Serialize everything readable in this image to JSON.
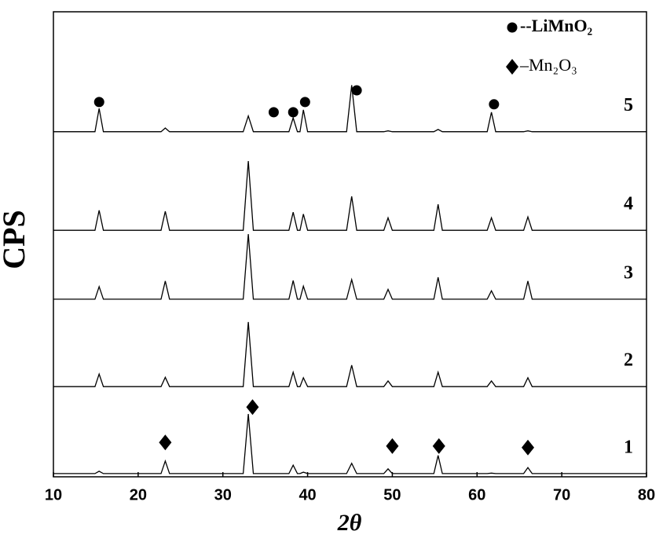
{
  "chart_data": {
    "type": "line",
    "xlabel": "2θ",
    "ylabel": "CPS",
    "xlim": [
      10,
      80
    ],
    "xticks": [
      10,
      20,
      30,
      40,
      50,
      60,
      70,
      80
    ],
    "ylim": [
      0,
      100
    ],
    "legend": "upper right",
    "x": [
      10,
      14.9,
      15.4,
      15.9,
      22.7,
      23.2,
      23.7,
      32.4,
      33,
      33.6,
      37.8,
      38.3,
      38.8,
      39.1,
      39.5,
      40,
      44.6,
      45.2,
      45.8,
      49,
      49.5,
      50,
      54.9,
      55.4,
      55.9,
      61.2,
      61.7,
      62.2,
      65.5,
      66,
      66.5,
      80
    ],
    "series": [
      {
        "name": "1",
        "color": "#000000",
        "values": [
          0.7,
          0.7,
          1.2,
          0.7,
          0.7,
          3.4,
          0.7,
          0.7,
          13.5,
          0.7,
          0.7,
          2.5,
          0.7,
          0.7,
          1.0,
          0.7,
          0.7,
          2.9,
          0.7,
          0.7,
          1.7,
          0.7,
          0.7,
          4.6,
          0.7,
          0.7,
          0.8,
          0.7,
          0.7,
          2.0,
          0.7,
          0.7
        ]
      },
      {
        "name": "2",
        "color": "#000000",
        "values": [
          19.4,
          19.4,
          22.1,
          19.4,
          19.4,
          21.4,
          19.4,
          19.4,
          33.3,
          19.4,
          19.4,
          22.5,
          19.4,
          19.4,
          21.3,
          19.4,
          19.4,
          24.0,
          19.4,
          19.4,
          20.6,
          19.4,
          19.4,
          22.5,
          19.4,
          19.4,
          20.6,
          19.4,
          19.4,
          21.3,
          19.4,
          19.4
        ]
      },
      {
        "name": "3",
        "color": "#000000",
        "values": [
          38.2,
          38.2,
          40.9,
          38.2,
          38.2,
          42.1,
          38.2,
          38.2,
          52.2,
          38.2,
          38.2,
          42.2,
          38.2,
          38.2,
          41.0,
          38.2,
          38.2,
          42.4,
          38.2,
          38.2,
          40.3,
          38.2,
          38.2,
          42.9,
          38.2,
          38.2,
          40.0,
          38.2,
          38.2,
          42.1,
          38.2,
          38.2
        ]
      },
      {
        "name": "4",
        "color": "#000000",
        "values": [
          53.0,
          53.0,
          57.3,
          53.0,
          53.0,
          57.1,
          53.0,
          53.0,
          67.9,
          53.0,
          53.0,
          56.9,
          53.0,
          53.0,
          56.5,
          53.0,
          53.0,
          60.3,
          53.0,
          53.0,
          55.7,
          53.0,
          53.0,
          58.6,
          53.0,
          53.0,
          55.7,
          53.0,
          53.0,
          55.9,
          53.0,
          53.0
        ]
      },
      {
        "name": "5",
        "color": "#000000",
        "values": [
          74.2,
          74.2,
          79.2,
          74.2,
          74.2,
          75.0,
          74.2,
          74.2,
          77.6,
          74.2,
          74.2,
          77.2,
          74.2,
          74.2,
          78.9,
          74.2,
          74.2,
          84.2,
          74.2,
          74.2,
          74.4,
          74.2,
          74.2,
          74.7,
          74.2,
          74.2,
          78.4,
          74.2,
          74.2,
          74.4,
          74.2,
          74.2
        ]
      }
    ],
    "legend_entries": [
      {
        "shape": "circle",
        "label": "--LiMnO₂"
      },
      {
        "shape": "diamond",
        "label": "–Mn₂O₃"
      }
    ],
    "annotations": [
      {
        "shape": "circle",
        "x": 15.4,
        "y": 80.6
      },
      {
        "shape": "circle",
        "x": 36,
        "y": 78.4
      },
      {
        "shape": "circle",
        "x": 38.3,
        "y": 78.4
      },
      {
        "shape": "circle",
        "x": 39.7,
        "y": 80.6
      },
      {
        "shape": "circle",
        "x": 45.8,
        "y": 83.1
      },
      {
        "shape": "circle",
        "x": 62,
        "y": 80.1
      },
      {
        "shape": "diamond",
        "x": 23.2,
        "y": 7.4
      },
      {
        "shape": "diamond",
        "x": 33.5,
        "y": 15
      },
      {
        "shape": "diamond",
        "x": 50,
        "y": 6.6
      },
      {
        "shape": "diamond",
        "x": 55.5,
        "y": 6.6
      },
      {
        "shape": "diamond",
        "x": 66,
        "y": 6.3
      }
    ]
  }
}
